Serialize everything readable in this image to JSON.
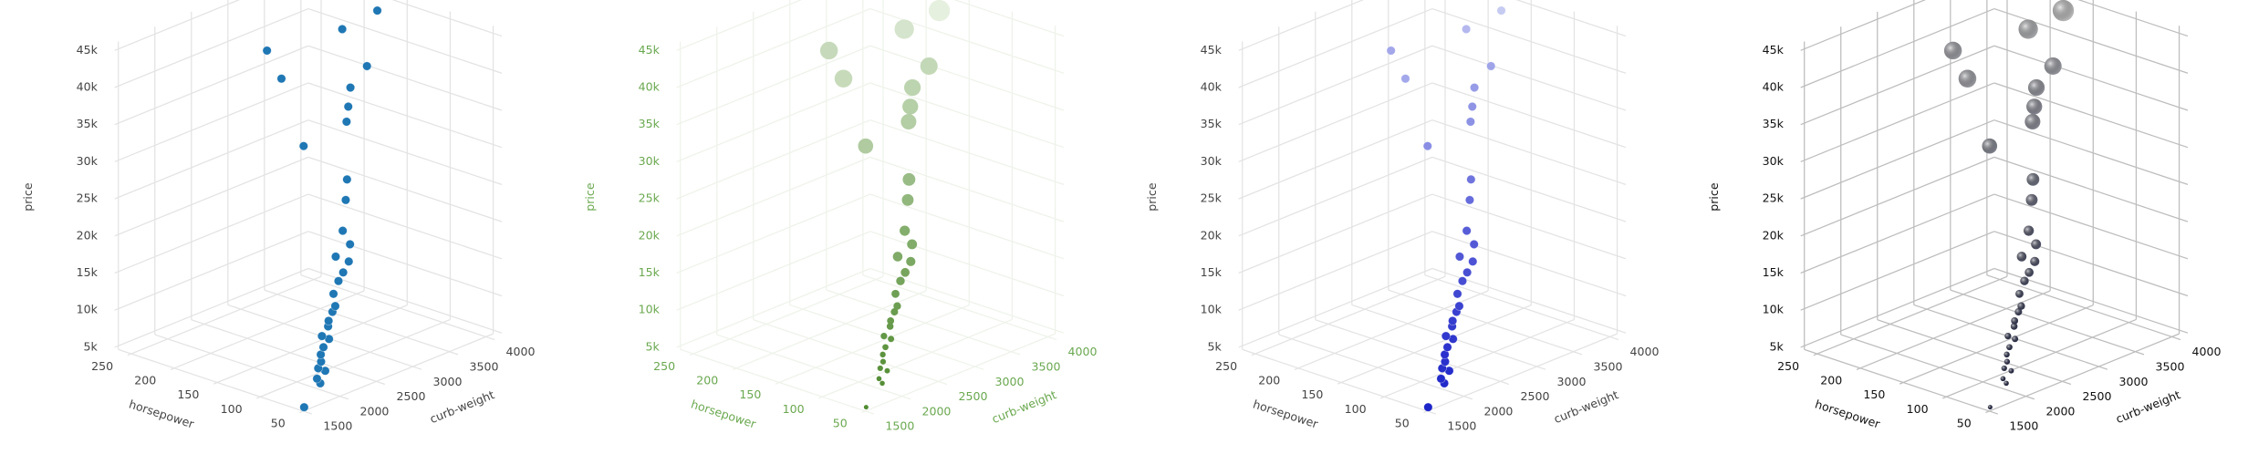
{
  "chart_data": [
    {
      "type": "scatter3d",
      "xlabel": "horsepower",
      "ylabel": "curb-weight",
      "zlabel": "price",
      "color": "#1f77b4",
      "axis_color": "#444444",
      "grid_color": "#e3e3e3",
      "x": [
        48,
        62,
        68,
        69,
        70,
        76,
        84,
        86,
        88,
        92,
        95,
        97,
        101,
        102,
        110,
        111,
        114,
        116,
        121,
        123,
        140,
        145,
        152,
        160,
        161,
        176,
        182,
        184,
        200,
        207,
        262,
        155
      ],
      "y": [
        1488,
        1874,
        1900,
        2024,
        1940,
        2050,
        2140,
        2200,
        2300,
        2250,
        2370,
        2400,
        2500,
        2550,
        2620,
        2700,
        2800,
        2900,
        2780,
        3000,
        3100,
        3200,
        3300,
        2800,
        3400,
        3600,
        3700,
        3950,
        3800,
        3050,
        3500,
        3750
      ],
      "z": [
        5151,
        6295,
        6575,
        7099,
        7738,
        7957,
        8249,
        8921,
        9549,
        9989,
        10698,
        11245,
        11900,
        12440,
        13499,
        14869,
        15510,
        16503,
        17450,
        18150,
        18920,
        22470,
        24565,
        30760,
        31600,
        32250,
        34184,
        36000,
        40960,
        37028,
        36880,
        45400
      ],
      "xlim": [
        40,
        265
      ],
      "ylim": [
        1450,
        4100
      ],
      "zlim": [
        4500,
        46000
      ],
      "xticks": [
        50,
        100,
        150,
        200,
        250
      ],
      "yticks": [
        1500,
        2000,
        2500,
        3000,
        3500,
        4000
      ],
      "zticks": [
        {
          "value": 5000,
          "label": "5k"
        },
        {
          "value": 10000,
          "label": "10k"
        },
        {
          "value": 15000,
          "label": "15k"
        },
        {
          "value": 20000,
          "label": "20k"
        },
        {
          "value": 25000,
          "label": "25k"
        },
        {
          "value": 30000,
          "label": "30k"
        },
        {
          "value": 35000,
          "label": "35k"
        },
        {
          "value": 40000,
          "label": "40k"
        },
        {
          "value": 45000,
          "label": "45k"
        }
      ]
    },
    {
      "type": "scatter3d",
      "xlabel": "horsepower",
      "ylabel": "curb-weight",
      "zlabel": "price",
      "colorscale": [
        "#4f8a2f",
        "#e8f1e2"
      ],
      "size_varies": true,
      "axis_color": "#6aa84f",
      "grid_color": "#eef3ea",
      "x": [
        48,
        62,
        68,
        69,
        70,
        76,
        84,
        86,
        88,
        92,
        95,
        97,
        101,
        102,
        110,
        111,
        114,
        116,
        121,
        123,
        140,
        145,
        152,
        160,
        161,
        176,
        182,
        184,
        200,
        207,
        262,
        155
      ],
      "y": [
        1488,
        1874,
        1900,
        2024,
        1940,
        2050,
        2140,
        2200,
        2300,
        2250,
        2370,
        2400,
        2500,
        2550,
        2620,
        2700,
        2800,
        2900,
        2780,
        3000,
        3100,
        3200,
        3300,
        2800,
        3400,
        3600,
        3700,
        3950,
        3800,
        3050,
        3500,
        3750
      ],
      "z": [
        5151,
        6295,
        6575,
        7099,
        7738,
        7957,
        8249,
        8921,
        9549,
        9989,
        10698,
        11245,
        11900,
        12440,
        13499,
        14869,
        15510,
        16503,
        17450,
        18150,
        18920,
        22470,
        24565,
        30760,
        31600,
        32250,
        34184,
        36000,
        40960,
        37028,
        36880,
        45400
      ],
      "xlim": [
        40,
        265
      ],
      "ylim": [
        1450,
        4100
      ],
      "zlim": [
        4500,
        46000
      ],
      "xticks": [
        50,
        100,
        150,
        200,
        250
      ],
      "yticks": [
        1500,
        2000,
        2500,
        3000,
        3500,
        4000
      ],
      "zticks": [
        {
          "value": 5000,
          "label": "5k"
        },
        {
          "value": 10000,
          "label": "10k"
        },
        {
          "value": 15000,
          "label": "15k"
        },
        {
          "value": 20000,
          "label": "20k"
        },
        {
          "value": 25000,
          "label": "25k"
        },
        {
          "value": 30000,
          "label": "30k"
        },
        {
          "value": 35000,
          "label": "35k"
        },
        {
          "value": 40000,
          "label": "40k"
        },
        {
          "value": 45000,
          "label": "45k"
        }
      ]
    },
    {
      "type": "scatter3d",
      "xlabel": "horsepower",
      "ylabel": "curb-weight",
      "zlabel": "price",
      "colorscale": [
        "#1a22c8",
        "#c9cdf3"
      ],
      "axis_color": "#444444",
      "grid_color": "#e3e3e3",
      "x": [
        48,
        62,
        68,
        69,
        70,
        76,
        84,
        86,
        88,
        92,
        95,
        97,
        101,
        102,
        110,
        111,
        114,
        116,
        121,
        123,
        140,
        145,
        152,
        160,
        161,
        176,
        182,
        184,
        200,
        207,
        262,
        155
      ],
      "y": [
        1488,
        1874,
        1900,
        2024,
        1940,
        2050,
        2140,
        2200,
        2300,
        2250,
        2370,
        2400,
        2500,
        2550,
        2620,
        2700,
        2800,
        2900,
        2780,
        3000,
        3100,
        3200,
        3300,
        2800,
        3400,
        3600,
        3700,
        3950,
        3800,
        3050,
        3500,
        3750
      ],
      "z": [
        5151,
        6295,
        6575,
        7099,
        7738,
        7957,
        8249,
        8921,
        9549,
        9989,
        10698,
        11245,
        11900,
        12440,
        13499,
        14869,
        15510,
        16503,
        17450,
        18150,
        18920,
        22470,
        24565,
        30760,
        31600,
        32250,
        34184,
        36000,
        40960,
        37028,
        36880,
        45400
      ],
      "xlim": [
        40,
        265
      ],
      "ylim": [
        1450,
        4100
      ],
      "zlim": [
        4500,
        46000
      ],
      "xticks": [
        50,
        100,
        150,
        200,
        250
      ],
      "yticks": [
        1500,
        2000,
        2500,
        3000,
        3500,
        4000
      ],
      "zticks": [
        {
          "value": 5000,
          "label": "5k"
        },
        {
          "value": 10000,
          "label": "10k"
        },
        {
          "value": 15000,
          "label": "15k"
        },
        {
          "value": 20000,
          "label": "20k"
        },
        {
          "value": 25000,
          "label": "25k"
        },
        {
          "value": 30000,
          "label": "30k"
        },
        {
          "value": 35000,
          "label": "35k"
        },
        {
          "value": 40000,
          "label": "40k"
        },
        {
          "value": 45000,
          "label": "45k"
        }
      ]
    },
    {
      "type": "scatter3d",
      "xlabel": "horsepower",
      "ylabel": "curb-weight",
      "zlabel": "price",
      "colorscale": [
        "#1b1f3b",
        "#b5b5b5"
      ],
      "size_varies": true,
      "axis_color": "#111111",
      "grid_color": "#bdbdbd",
      "x": [
        48,
        62,
        68,
        69,
        70,
        76,
        84,
        86,
        88,
        92,
        95,
        97,
        101,
        102,
        110,
        111,
        114,
        116,
        121,
        123,
        140,
        145,
        152,
        160,
        161,
        176,
        182,
        184,
        200,
        207,
        262,
        155
      ],
      "y": [
        1488,
        1874,
        1900,
        2024,
        1940,
        2050,
        2140,
        2200,
        2300,
        2250,
        2370,
        2400,
        2500,
        2550,
        2620,
        2700,
        2800,
        2900,
        2780,
        3000,
        3100,
        3200,
        3300,
        2800,
        3400,
        3600,
        3700,
        3950,
        3800,
        3050,
        3500,
        3750
      ],
      "z": [
        5151,
        6295,
        6575,
        7099,
        7738,
        7957,
        8249,
        8921,
        9549,
        9989,
        10698,
        11245,
        11900,
        12440,
        13499,
        14869,
        15510,
        16503,
        17450,
        18150,
        18920,
        22470,
        24565,
        30760,
        31600,
        32250,
        34184,
        36000,
        40960,
        37028,
        36880,
        45400
      ],
      "xlim": [
        40,
        265
      ],
      "ylim": [
        1450,
        4100
      ],
      "zlim": [
        4500,
        46000
      ],
      "xticks": [
        50,
        100,
        150,
        200,
        250
      ],
      "yticks": [
        1500,
        2000,
        2500,
        3000,
        3500,
        4000
      ],
      "zticks": [
        {
          "value": 5000,
          "label": "5k"
        },
        {
          "value": 10000,
          "label": "10k"
        },
        {
          "value": 15000,
          "label": "15k"
        },
        {
          "value": 20000,
          "label": "20k"
        },
        {
          "value": 25000,
          "label": "25k"
        },
        {
          "value": 30000,
          "label": "30k"
        },
        {
          "value": 35000,
          "label": "35k"
        },
        {
          "value": 40000,
          "label": "40k"
        },
        {
          "value": 45000,
          "label": "45k"
        }
      ]
    }
  ]
}
